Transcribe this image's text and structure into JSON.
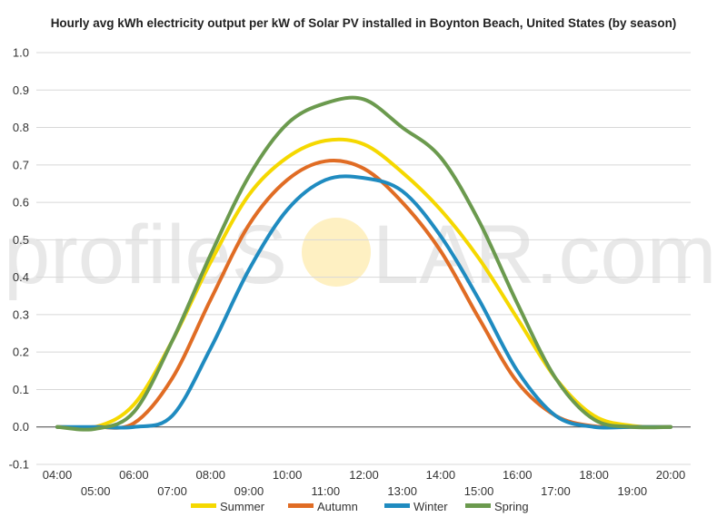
{
  "watermark": {
    "left": "profileS",
    "right": "LAR.com",
    "sun_color": "#fde9a8"
  },
  "chart_data": {
    "type": "line",
    "title": "Hourly avg kWh electricity output per kW of Solar PV installed in Boynton Beach, United States (by season)",
    "xlabel": "",
    "ylabel": "",
    "categories": [
      "04:00",
      "05:00",
      "06:00",
      "07:00",
      "08:00",
      "09:00",
      "10:00",
      "11:00",
      "12:00",
      "13:00",
      "14:00",
      "15:00",
      "16:00",
      "17:00",
      "18:00",
      "19:00",
      "20:00"
    ],
    "y_ticks": [
      "-0.1",
      "0.0",
      "0.1",
      "0.2",
      "0.3",
      "0.4",
      "0.5",
      "0.6",
      "0.7",
      "0.8",
      "0.9",
      "1.0"
    ],
    "ylim": [
      -0.1,
      1.0
    ],
    "grid": true,
    "legend_position": "bottom",
    "series": [
      {
        "name": "Summer",
        "color": "#f5d800",
        "values": [
          0.0,
          0.0,
          0.06,
          0.23,
          0.44,
          0.62,
          0.72,
          0.765,
          0.755,
          0.68,
          0.58,
          0.45,
          0.29,
          0.13,
          0.03,
          0.003,
          0.0
        ]
      },
      {
        "name": "Autumn",
        "color": "#e06c24",
        "values": [
          0.0,
          0.0,
          0.01,
          0.13,
          0.34,
          0.54,
          0.66,
          0.71,
          0.69,
          0.6,
          0.47,
          0.29,
          0.12,
          0.03,
          0.002,
          0.0,
          0.0
        ]
      },
      {
        "name": "Winter",
        "color": "#1f8bc0",
        "values": [
          0.0,
          0.0,
          0.0,
          0.03,
          0.21,
          0.42,
          0.58,
          0.66,
          0.665,
          0.63,
          0.51,
          0.34,
          0.15,
          0.03,
          0.0,
          0.0,
          0.0
        ]
      },
      {
        "name": "Spring",
        "color": "#6b9a4e",
        "values": [
          0.0,
          -0.005,
          0.04,
          0.23,
          0.46,
          0.67,
          0.81,
          0.865,
          0.875,
          0.8,
          0.72,
          0.55,
          0.33,
          0.13,
          0.02,
          0.0,
          0.0
        ]
      }
    ]
  }
}
